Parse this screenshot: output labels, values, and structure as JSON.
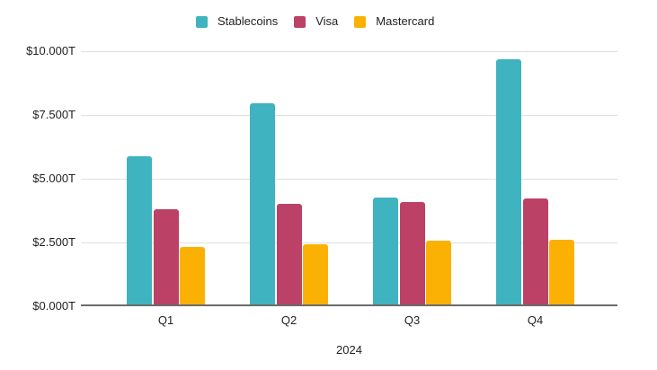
{
  "chart_data": {
    "type": "bar",
    "title": "",
    "categories": [
      "Q1",
      "Q2",
      "Q3",
      "Q4"
    ],
    "series": [
      {
        "name": "Stablecoins",
        "color": "#3fb3bf",
        "values": [
          5.8,
          7.9,
          4.2,
          9.6
        ]
      },
      {
        "name": "Visa",
        "color": "#bc4166",
        "values": [
          3.75,
          3.95,
          4.0,
          4.15
        ]
      },
      {
        "name": "Mastercard",
        "color": "#fbb104",
        "values": [
          2.25,
          2.35,
          2.5,
          2.55
        ]
      }
    ],
    "xlabel": "2024",
    "ylabel": "",
    "ylim": [
      0,
      10
    ],
    "ytick_labels_top_to_bottom": [
      "$10.000T",
      "$7.500T",
      "$5.000T",
      "$2.500T",
      "$0.000T"
    ],
    "legend_position": "top",
    "grid": true
  },
  "colors": {
    "gridline": "#e0e0e0",
    "baseline": "#6b6b6b",
    "text": "#222222",
    "background": "#ffffff"
  }
}
